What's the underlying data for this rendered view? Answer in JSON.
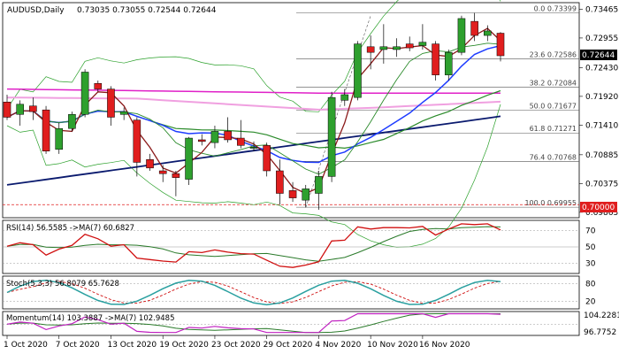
{
  "header": {
    "symbol": "AUDUSD,Daily",
    "ohlc": "0.73035 0.73055 0.72544 0.72644"
  },
  "colors": {
    "bull": "#2ea02e",
    "bear": "#e01e1e",
    "wick": "#000000",
    "sma_fast": "#8b1a1a",
    "ma_green": "#2a8a2a",
    "ma_blue": "#1e3cff",
    "ma_navy": "#0a1a6e",
    "ma_magenta": "#e020c8",
    "ma_pink": "#f0a0e0",
    "band": "#2aa02a",
    "price_tag": "#000000",
    "support_tag": "#e01e1e",
    "rsi": "#d01010",
    "rsi_ma": "#2a7a2a",
    "stoch_k": "#2aa0a0",
    "stoch_d": "#d01010",
    "mom": "#c020c0",
    "mom_ma": "#2a7a2a"
  },
  "price_axis": {
    "ticks": [
      "0.73465",
      "0.72955",
      "0.72430",
      "0.71920",
      "0.71410",
      "0.70885",
      "0.70375",
      "0.69865"
    ],
    "current_price": "0.72644",
    "support_level": "0.70000"
  },
  "fibonacci": [
    {
      "label": "0.0 0.73399",
      "value": 0.73399
    },
    {
      "label": "23.6 0.72586",
      "value": 0.72586
    },
    {
      "label": "38.2 0.72084",
      "value": 0.72084
    },
    {
      "label": "50.0 0.71677",
      "value": 0.71677
    },
    {
      "label": "61.8 0.71271",
      "value": 0.71271
    },
    {
      "label": "76.4 0.70768",
      "value": 0.70768
    },
    {
      "label": "100.0 0.69955",
      "value": 0.69955
    }
  ],
  "date_axis": [
    "1 Oct 2020",
    "7 Oct 2020",
    "13 Oct 2020",
    "19 Oct 2020",
    "23 Oct 2020",
    "29 Oct 2020",
    "4 Nov 2020",
    "10 Nov 2020",
    "16 Nov 2020"
  ],
  "rsi": {
    "title": "RSI(14) 56.5585 ->MA(7) 60.6827",
    "ticks": [
      "70",
      "50",
      "30"
    ]
  },
  "stoch": {
    "title": "Stoch(5,3,3) 56.8079 65.7628",
    "ticks": [
      "80",
      "20"
    ]
  },
  "momentum": {
    "title": "Momentum(14) 103.3887 ->MA(7) 102.9485",
    "ticks": [
      "104.2281",
      "96.7752"
    ]
  },
  "chart_data": {
    "type": "candlestick",
    "title": "AUDUSD,Daily",
    "ylim": [
      0.698,
      0.7355
    ],
    "candles": [
      {
        "o": 0.7182,
        "h": 0.7195,
        "l": 0.715,
        "c": 0.7155
      },
      {
        "o": 0.716,
        "h": 0.7185,
        "l": 0.714,
        "c": 0.7178
      },
      {
        "o": 0.7175,
        "h": 0.719,
        "l": 0.715,
        "c": 0.7165
      },
      {
        "o": 0.7168,
        "h": 0.7175,
        "l": 0.709,
        "c": 0.7095
      },
      {
        "o": 0.7098,
        "h": 0.7145,
        "l": 0.709,
        "c": 0.7135
      },
      {
        "o": 0.7135,
        "h": 0.7165,
        "l": 0.713,
        "c": 0.716
      },
      {
        "o": 0.716,
        "h": 0.724,
        "l": 0.7155,
        "c": 0.7235
      },
      {
        "o": 0.7215,
        "h": 0.722,
        "l": 0.72,
        "c": 0.7205
      },
      {
        "o": 0.7205,
        "h": 0.721,
        "l": 0.714,
        "c": 0.7155
      },
      {
        "o": 0.716,
        "h": 0.7172,
        "l": 0.715,
        "c": 0.7165
      },
      {
        "o": 0.715,
        "h": 0.7155,
        "l": 0.705,
        "c": 0.7075
      },
      {
        "o": 0.708,
        "h": 0.709,
        "l": 0.706,
        "c": 0.7065
      },
      {
        "o": 0.706,
        "h": 0.707,
        "l": 0.704,
        "c": 0.7055
      },
      {
        "o": 0.7055,
        "h": 0.706,
        "l": 0.7015,
        "c": 0.7048
      },
      {
        "o": 0.7045,
        "h": 0.712,
        "l": 0.7035,
        "c": 0.7118
      },
      {
        "o": 0.7115,
        "h": 0.7125,
        "l": 0.7105,
        "c": 0.7112
      },
      {
        "o": 0.711,
        "h": 0.714,
        "l": 0.71,
        "c": 0.713
      },
      {
        "o": 0.713,
        "h": 0.7155,
        "l": 0.711,
        "c": 0.7115
      },
      {
        "o": 0.7118,
        "h": 0.715,
        "l": 0.71,
        "c": 0.7105
      },
      {
        "o": 0.71,
        "h": 0.7112,
        "l": 0.7095,
        "c": 0.7102
      },
      {
        "o": 0.7105,
        "h": 0.711,
        "l": 0.705,
        "c": 0.706
      },
      {
        "o": 0.706,
        "h": 0.708,
        "l": 0.7,
        "c": 0.702
      },
      {
        "o": 0.7025,
        "h": 0.704,
        "l": 0.7005,
        "c": 0.7012
      },
      {
        "o": 0.7008,
        "h": 0.7035,
        "l": 0.6995,
        "c": 0.7028
      },
      {
        "o": 0.702,
        "h": 0.706,
        "l": 0.6991,
        "c": 0.705
      },
      {
        "o": 0.705,
        "h": 0.72,
        "l": 0.704,
        "c": 0.719
      },
      {
        "o": 0.7185,
        "h": 0.7205,
        "l": 0.7175,
        "c": 0.7195
      },
      {
        "o": 0.719,
        "h": 0.729,
        "l": 0.7185,
        "c": 0.7285
      },
      {
        "o": 0.728,
        "h": 0.73,
        "l": 0.724,
        "c": 0.727
      },
      {
        "o": 0.7275,
        "h": 0.732,
        "l": 0.725,
        "c": 0.728
      },
      {
        "o": 0.7275,
        "h": 0.7295,
        "l": 0.7262,
        "c": 0.728
      },
      {
        "o": 0.7285,
        "h": 0.7298,
        "l": 0.7272,
        "c": 0.7278
      },
      {
        "o": 0.7282,
        "h": 0.732,
        "l": 0.7275,
        "c": 0.7288
      },
      {
        "o": 0.7285,
        "h": 0.729,
        "l": 0.722,
        "c": 0.723
      },
      {
        "o": 0.723,
        "h": 0.7275,
        "l": 0.722,
        "c": 0.727
      },
      {
        "o": 0.727,
        "h": 0.7335,
        "l": 0.7265,
        "c": 0.733
      },
      {
        "o": 0.7325,
        "h": 0.734,
        "l": 0.729,
        "c": 0.73
      },
      {
        "o": 0.73,
        "h": 0.7318,
        "l": 0.729,
        "c": 0.7308
      },
      {
        "o": 0.7304,
        "h": 0.7306,
        "l": 0.7254,
        "c": 0.7264
      }
    ]
  }
}
